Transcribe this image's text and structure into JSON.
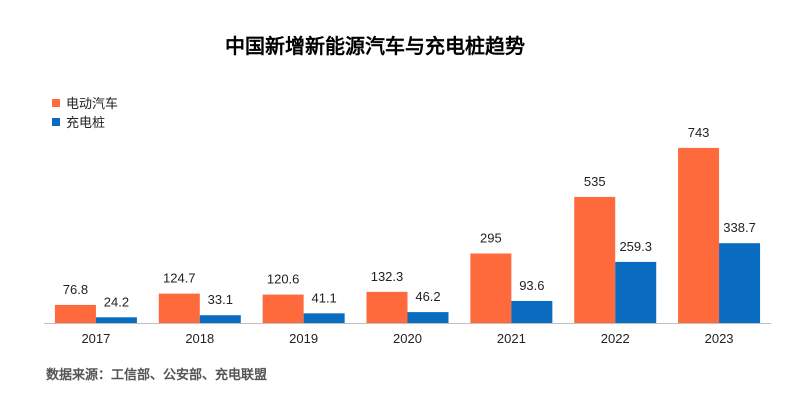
{
  "chart_data": {
    "type": "bar",
    "title": "中国新增新能源汽车与充电桩趋势",
    "categories": [
      "2017",
      "2018",
      "2019",
      "2020",
      "2021",
      "2022",
      "2023"
    ],
    "series": [
      {
        "name": "电动汽车",
        "color": "#FF6A3D",
        "values": [
          76.8,
          124.7,
          120.6,
          132.3,
          295,
          535,
          743
        ]
      },
      {
        "name": "充电桩",
        "color": "#0A6CC1",
        "values": [
          24.2,
          33.1,
          41.1,
          46.2,
          93.6,
          259.3,
          338.7
        ]
      }
    ],
    "ylim": [
      0,
      870
    ],
    "grid": false,
    "legend_position": "top-left",
    "xlabel": "",
    "ylabel": ""
  },
  "source": "数据来源：工信部、公安部、充电联盟",
  "colors": {
    "axis": "#BFBFBF",
    "label": "#222222"
  }
}
